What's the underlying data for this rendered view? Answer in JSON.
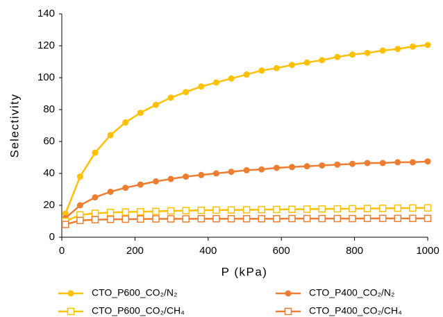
{
  "chart_data": {
    "type": "line",
    "xlabel": "P (kPa)",
    "ylabel": "Selectivity",
    "x": [
      10,
      50,
      91,
      133,
      174,
      215,
      257,
      298,
      339,
      381,
      422,
      463,
      505,
      546,
      587,
      629,
      670,
      711,
      753,
      794,
      835,
      877,
      918,
      959,
      1000
    ],
    "series": [
      {
        "name": "CTO_P600_CO₂/N₂",
        "color": "#FFC000",
        "marker": "circle",
        "values": [
          14.8,
          38,
          53,
          64,
          72,
          78,
          83,
          87.5,
          91,
          94.5,
          97,
          99.5,
          102,
          104.5,
          106,
          108,
          109.5,
          111,
          113,
          114.5,
          115.5,
          117,
          118,
          119.5,
          120.5
        ]
      },
      {
        "name": "CTO_P400_CO₂/N₂",
        "color": "#ED7D31",
        "marker": "circle",
        "values": [
          12,
          20,
          25,
          28.5,
          31,
          33,
          35,
          36.5,
          38,
          39,
          40,
          41,
          42,
          42.5,
          43.5,
          44,
          44.5,
          45,
          45.5,
          46,
          46.5,
          46.5,
          47,
          47,
          47.5
        ]
      },
      {
        "name": "CTO_P600_CO₂/CH₄",
        "color": "#FFC000",
        "marker": "square",
        "values": [
          10,
          14,
          15,
          15.5,
          15.8,
          16,
          16.2,
          16.5,
          16.7,
          16.9,
          17,
          17.1,
          17.2,
          17.3,
          17.4,
          17.5,
          17.6,
          17.7,
          17.8,
          17.9,
          18,
          18.1,
          18.2,
          18.3,
          18.4
        ]
      },
      {
        "name": "CTO_P400_CO₂/CH₄",
        "color": "#ED7D31",
        "marker": "square",
        "values": [
          8,
          10.5,
          11,
          11.2,
          11.3,
          11.4,
          11.5,
          11.5,
          11.5,
          11.6,
          11.6,
          11.6,
          11.6,
          11.6,
          11.6,
          11.7,
          11.7,
          11.7,
          11.7,
          11.7,
          11.8,
          11.8,
          11.8,
          11.8,
          11.8
        ]
      }
    ],
    "xlim": [
      0,
      1000
    ],
    "xticks": [
      0,
      200,
      400,
      600,
      800,
      1000
    ],
    "ylim": [
      0,
      140
    ],
    "yticks": [
      0,
      20,
      40,
      60,
      80,
      100,
      120,
      140
    ],
    "grid": false,
    "legend": "bottom"
  }
}
